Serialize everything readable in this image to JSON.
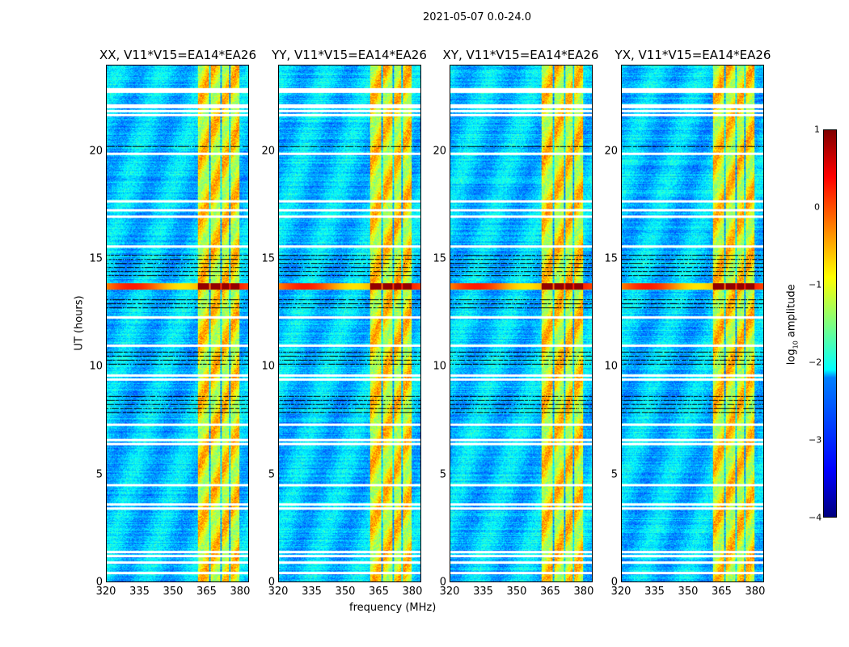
{
  "chart_data": {
    "type": "heatmap",
    "title": "2021-05-07 0.0-24.0",
    "xlabel": "frequency (MHz)",
    "ylabel": "UT (hours)",
    "xlim": [
      320,
      384
    ],
    "ylim": [
      0,
      24
    ],
    "xticks": [
      "320",
      "335",
      "350",
      "365",
      "380"
    ],
    "yticks": [
      "0",
      "5",
      "10",
      "15",
      "20"
    ],
    "panels": [
      {
        "title": "XX, V11*V15=EA14*EA26"
      },
      {
        "title": "YY, V11*V15=EA14*EA26"
      },
      {
        "title": "XY, V11*V15=EA14*EA26"
      },
      {
        "title": "YX, V11*V15=EA14*EA26"
      }
    ],
    "bright_band_mhz": [
      [
        361,
        366
      ],
      [
        367,
        371
      ],
      [
        372,
        375
      ],
      [
        376,
        380
      ]
    ],
    "strong_rfi_hours": [
      13.6,
      13.9
    ],
    "flagged_hours": [
      0.4,
      0.9,
      1.2,
      1.4,
      3.4,
      3.6,
      4.5,
      6.4,
      6.6,
      7.3,
      9.4,
      9.6,
      11.0,
      12.3,
      15.6,
      17.0,
      17.3,
      17.7,
      19.9,
      21.7,
      21.9,
      22.8
    ],
    "colorbar": {
      "label": "log10 amplitude",
      "ticks": [
        "1",
        "0",
        "−1",
        "−2",
        "−3",
        "−4"
      ],
      "range": [
        -4,
        1
      ],
      "colormap": "jet"
    }
  }
}
